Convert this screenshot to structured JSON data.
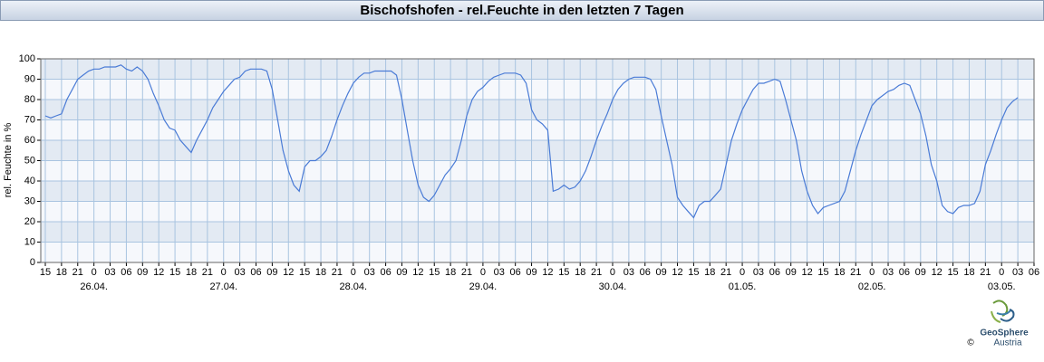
{
  "chart_data": {
    "type": "line",
    "title": "Bischofshofen - rel.Feuchte in den letzten 7 Tagen",
    "y_label": "rel. Feuchte in %",
    "ylim": [
      0,
      100
    ],
    "yticks": [
      0,
      10,
      20,
      30,
      40,
      50,
      60,
      70,
      80,
      90,
      100
    ],
    "xlim": [
      0,
      183
    ],
    "xticks": [
      {
        "value": 0,
        "label": "15"
      },
      {
        "value": 3,
        "label": "18"
      },
      {
        "value": 6,
        "label": "21"
      },
      {
        "value": 9,
        "label": "0"
      },
      {
        "value": 12,
        "label": "03"
      },
      {
        "value": 15,
        "label": "06"
      },
      {
        "value": 18,
        "label": "09"
      },
      {
        "value": 21,
        "label": "12"
      },
      {
        "value": 24,
        "label": "15"
      },
      {
        "value": 27,
        "label": "18"
      },
      {
        "value": 30,
        "label": "21"
      },
      {
        "value": 33,
        "label": "0"
      },
      {
        "value": 36,
        "label": "03"
      },
      {
        "value": 39,
        "label": "06"
      },
      {
        "value": 42,
        "label": "09"
      },
      {
        "value": 45,
        "label": "12"
      },
      {
        "value": 48,
        "label": "15"
      },
      {
        "value": 51,
        "label": "18"
      },
      {
        "value": 54,
        "label": "21"
      },
      {
        "value": 57,
        "label": "0"
      },
      {
        "value": 60,
        "label": "03"
      },
      {
        "value": 63,
        "label": "06"
      },
      {
        "value": 66,
        "label": "09"
      },
      {
        "value": 69,
        "label": "12"
      },
      {
        "value": 72,
        "label": "15"
      },
      {
        "value": 75,
        "label": "18"
      },
      {
        "value": 78,
        "label": "21"
      },
      {
        "value": 81,
        "label": "0"
      },
      {
        "value": 84,
        "label": "03"
      },
      {
        "value": 87,
        "label": "06"
      },
      {
        "value": 90,
        "label": "09"
      },
      {
        "value": 93,
        "label": "12"
      },
      {
        "value": 96,
        "label": "15"
      },
      {
        "value": 99,
        "label": "18"
      },
      {
        "value": 102,
        "label": "21"
      },
      {
        "value": 105,
        "label": "0"
      },
      {
        "value": 108,
        "label": "03"
      },
      {
        "value": 111,
        "label": "06"
      },
      {
        "value": 114,
        "label": "09"
      },
      {
        "value": 117,
        "label": "12"
      },
      {
        "value": 120,
        "label": "15"
      },
      {
        "value": 123,
        "label": "18"
      },
      {
        "value": 126,
        "label": "21"
      },
      {
        "value": 129,
        "label": "0"
      },
      {
        "value": 132,
        "label": "03"
      },
      {
        "value": 135,
        "label": "06"
      },
      {
        "value": 138,
        "label": "09"
      },
      {
        "value": 141,
        "label": "12"
      },
      {
        "value": 144,
        "label": "15"
      },
      {
        "value": 147,
        "label": "18"
      },
      {
        "value": 150,
        "label": "21"
      },
      {
        "value": 153,
        "label": "0"
      },
      {
        "value": 156,
        "label": "03"
      },
      {
        "value": 159,
        "label": "06"
      },
      {
        "value": 162,
        "label": "09"
      },
      {
        "value": 165,
        "label": "12"
      },
      {
        "value": 168,
        "label": "15"
      },
      {
        "value": 171,
        "label": "18"
      },
      {
        "value": 174,
        "label": "21"
      },
      {
        "value": 177,
        "label": "0"
      },
      {
        "value": 180,
        "label": "03"
      },
      {
        "value": 183,
        "label": "06"
      }
    ],
    "date_labels": [
      {
        "value": 9,
        "label": "26.04."
      },
      {
        "value": 33,
        "label": "27.04."
      },
      {
        "value": 57,
        "label": "28.04."
      },
      {
        "value": 81,
        "label": "29.04."
      },
      {
        "value": 105,
        "label": "30.04."
      },
      {
        "value": 129,
        "label": "01.05."
      },
      {
        "value": 153,
        "label": "02.05."
      },
      {
        "value": 177,
        "label": "03.05."
      }
    ],
    "grid": true,
    "x": [
      0,
      1,
      2,
      3,
      4,
      5,
      6,
      7,
      8,
      9,
      10,
      11,
      12,
      13,
      14,
      15,
      16,
      17,
      18,
      19,
      20,
      21,
      22,
      23,
      24,
      25,
      26,
      27,
      28,
      29,
      30,
      31,
      32,
      33,
      34,
      35,
      36,
      37,
      38,
      39,
      40,
      41,
      42,
      43,
      44,
      45,
      46,
      47,
      48,
      49,
      50,
      51,
      52,
      53,
      54,
      55,
      56,
      57,
      58,
      59,
      60,
      61,
      62,
      63,
      64,
      65,
      66,
      67,
      68,
      69,
      70,
      71,
      72,
      73,
      74,
      75,
      76,
      77,
      78,
      79,
      80,
      81,
      82,
      83,
      84,
      85,
      86,
      87,
      88,
      89,
      90,
      91,
      92,
      93,
      94,
      95,
      96,
      97,
      98,
      99,
      100,
      101,
      102,
      103,
      104,
      105,
      106,
      107,
      108,
      109,
      110,
      111,
      112,
      113,
      114,
      115,
      116,
      117,
      118,
      119,
      120,
      121,
      122,
      123,
      124,
      125,
      126,
      127,
      128,
      129,
      130,
      131,
      132,
      133,
      134,
      135,
      136,
      137,
      138,
      139,
      140,
      141,
      142,
      143,
      144,
      145,
      146,
      147,
      148,
      149,
      150,
      151,
      152,
      153,
      154,
      155,
      156,
      157,
      158,
      159,
      160,
      161,
      162,
      163,
      164,
      165,
      166,
      167,
      168,
      169,
      170,
      171,
      172,
      173,
      174,
      175,
      176,
      177,
      178,
      179,
      180
    ],
    "series": [
      {
        "name": "rel. Feuchte",
        "color": "#4a7bd6",
        "values": [
          72,
          71,
          72,
          73,
          80,
          85,
          90,
          92,
          94,
          95,
          95,
          96,
          96,
          96,
          97,
          95,
          94,
          96,
          94,
          90,
          83,
          77,
          70,
          66,
          65,
          60,
          57,
          54,
          60,
          65,
          70,
          76,
          80,
          84,
          87,
          90,
          91,
          94,
          95,
          95,
          95,
          94,
          85,
          70,
          55,
          45,
          38,
          35,
          47,
          50,
          50,
          52,
          55,
          62,
          70,
          77,
          83,
          88,
          91,
          93,
          93,
          94,
          94,
          94,
          94,
          92,
          80,
          65,
          50,
          38,
          32,
          30,
          33,
          38,
          43,
          46,
          50,
          60,
          72,
          80,
          84,
          86,
          89,
          91,
          92,
          93,
          93,
          93,
          92,
          88,
          75,
          70,
          68,
          65,
          35,
          36,
          38,
          36,
          37,
          40,
          45,
          52,
          60,
          67,
          73,
          80,
          85,
          88,
          90,
          91,
          91,
          91,
          90,
          85,
          72,
          60,
          48,
          32,
          28,
          25,
          22,
          28,
          30,
          30,
          33,
          36,
          48,
          60,
          68,
          75,
          80,
          85,
          88,
          88,
          89,
          90,
          89,
          80,
          70,
          60,
          45,
          35,
          28,
          24,
          27,
          28,
          29,
          30,
          35,
          45,
          55,
          63,
          70,
          77,
          80,
          82,
          84,
          85,
          87,
          88,
          87,
          80,
          73,
          62,
          48,
          40,
          28,
          25,
          24,
          27,
          28,
          28,
          29,
          35,
          48,
          55,
          63,
          70,
          76,
          79,
          81
        ]
      }
    ]
  },
  "footer": {
    "copyright": "©",
    "brand": "GeoSphere",
    "country": "Austria"
  }
}
